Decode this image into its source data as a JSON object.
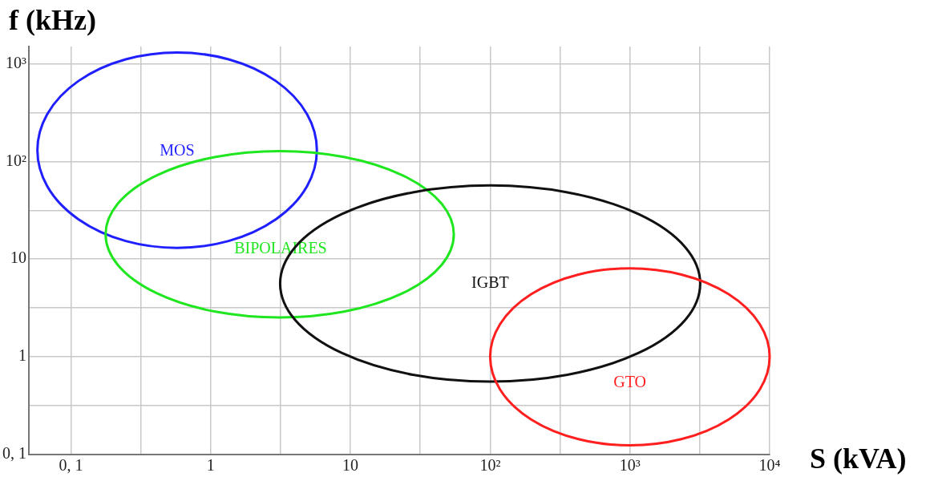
{
  "chart_data": {
    "type": "line",
    "xlabel": "S (kVA)",
    "ylabel": "f (kHz)",
    "log": "xy",
    "grid": true,
    "xlim": [
      0.05,
      10000
    ],
    "ylim": [
      0.1,
      1500
    ],
    "xticks": [
      {
        "value": 0.1,
        "label": "0, 1"
      },
      {
        "value": 0.316,
        "label": null
      },
      1,
      {
        "value": 3.16,
        "label": null
      },
      10,
      {
        "value": 31.6,
        "label": null
      },
      {
        "value": 100,
        "label": "10²"
      },
      {
        "value": 316,
        "label": null
      },
      {
        "value": 1000,
        "label": "10³"
      },
      {
        "value": 3162,
        "label": null
      },
      {
        "value": 10000,
        "label": "10⁴"
      }
    ],
    "yticks": [
      {
        "value": 0.1,
        "label": "0, 1"
      },
      {
        "value": 0.316,
        "label": null
      },
      1,
      {
        "value": 3.16,
        "label": null
      },
      10,
      {
        "value": 31.6,
        "label": null
      },
      {
        "value": 100,
        "label": "10²"
      },
      {
        "value": 316,
        "label": null
      },
      {
        "value": 1000,
        "label": "10³"
      }
    ],
    "annotations": [
      "MOS",
      "BIPOLAIRES",
      "IGBT",
      "GTO"
    ]
  }
}
